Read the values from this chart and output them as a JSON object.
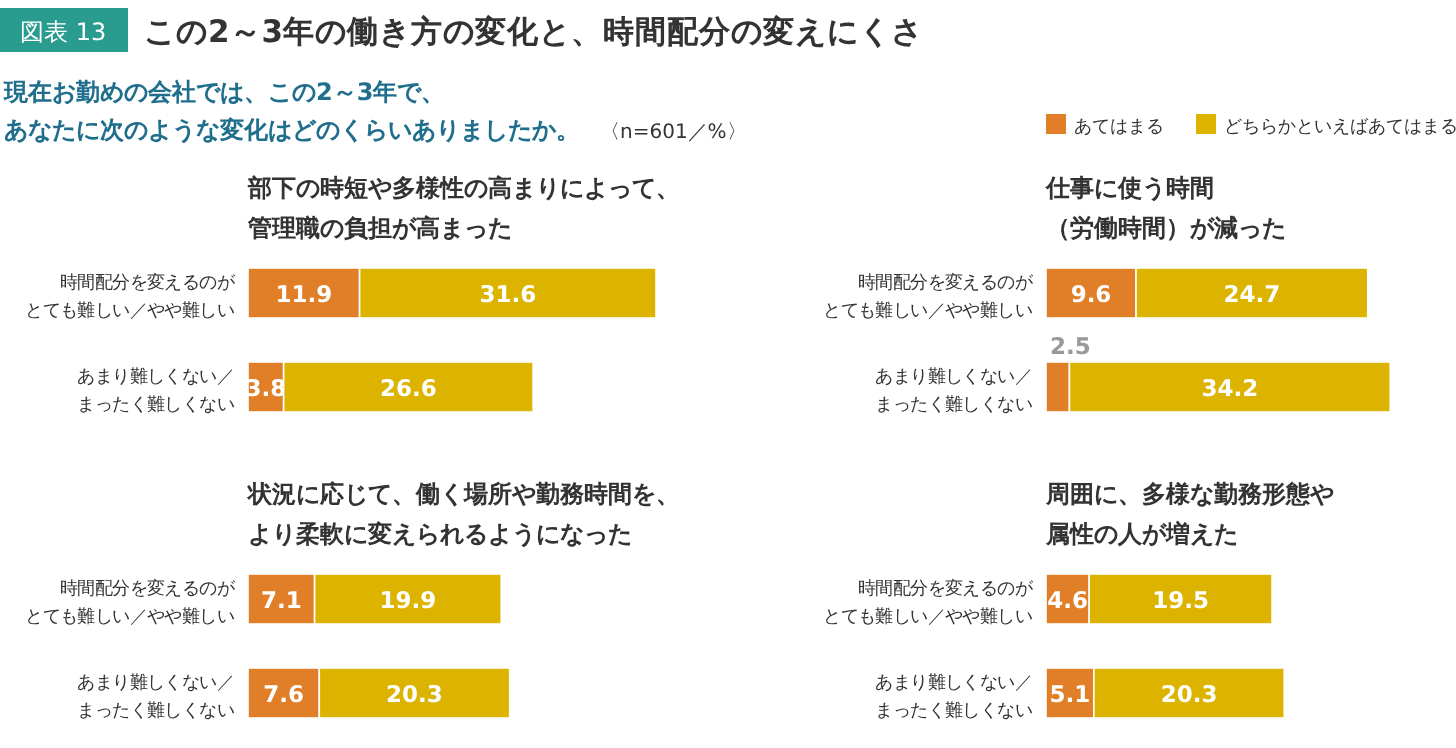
{
  "chart_data": [
    {
      "type": "bar",
      "orientation": "horizontal",
      "stacked": true,
      "data_labels": true,
      "legend": "top right",
      "title": "この2～3年の働き方の変化と、時間配分の変えにくさ",
      "subtitle": "部下の時短や多様性の高まりによって、管理職の負担が高まった",
      "annotations": [
        "図表 13",
        "現在お勤めの会社では、この2～3年で、あなたに次のような変化はどのくらいありましたか。",
        "〈n=601／%〉"
      ],
      "categories": [
        "時間配分を変えるのがとても難しい／やや難しい",
        "あまり難しくない／まったく難しくない"
      ],
      "series": [
        {
          "name": "あてはまる",
          "color": "#e07f27",
          "values": [
            11.9,
            3.8
          ]
        },
        {
          "name": "どちらかといえばあてはまる",
          "color": "#dcb400",
          "values": [
            31.6,
            26.6
          ]
        }
      ]
    },
    {
      "type": "bar",
      "orientation": "horizontal",
      "stacked": true,
      "data_labels": true,
      "title": "仕事に使う時間（労働時間）が減った",
      "categories": [
        "時間配分を変えるのがとても難しい／やや難しい",
        "あまり難しくない／まったく難しくない"
      ],
      "series": [
        {
          "color": "#e07f27",
          "values": [
            9.6,
            2.5
          ]
        },
        {
          "color": "#dcb400",
          "values": [
            24.7,
            34.2
          ]
        }
      ]
    },
    {
      "type": "bar",
      "orientation": "horizontal",
      "stacked": true,
      "data_labels": true,
      "title": "状況に応じて、働く場所や勤務時間を、より柔軟に変えられるようになった",
      "categories": [
        "時間配分を変えるのがとても難しい／やや難しい",
        "あまり難しくない／まったく難しくない"
      ],
      "series": [
        {
          "color": "#e07f27",
          "values": [
            7.1,
            7.6
          ]
        },
        {
          "color": "#dcb400",
          "values": [
            19.9,
            20.3
          ]
        }
      ]
    },
    {
      "type": "bar",
      "orientation": "horizontal",
      "stacked": true,
      "data_labels": true,
      "title": "周囲に、多様な勤務形態や属性の人が増えた",
      "categories": [
        "時間配分を変えるのがとても難しい／やや難しい",
        "あまり難しくない／まったく難しくない"
      ],
      "series": [
        {
          "color": "#e07f27",
          "values": [
            4.6,
            5.1
          ]
        },
        {
          "color": "#dcb400",
          "values": [
            19.5,
            20.3
          ]
        }
      ]
    }
  ]
}
